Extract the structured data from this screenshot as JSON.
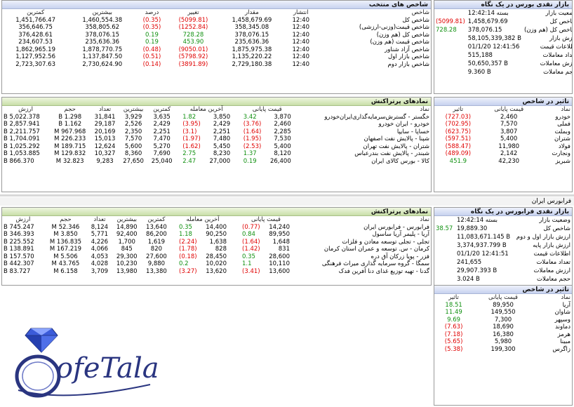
{
  "selected_indices": {
    "title": "شاخص های منتخب",
    "headers": [
      "شاخص",
      "انتشار",
      "مقدار",
      "تغییر",
      "درصد",
      "بیشترین",
      "کمترین"
    ],
    "rows": [
      {
        "name": "شاخص کل",
        "time": "12:40",
        "value": "1,458,679.69",
        "change": "(5099.81)",
        "pct": "(0.35)",
        "max": "1,460,554.38",
        "min": "1,451,766.47",
        "dir": "neg"
      },
      {
        "name": "شاخص قیمت(وزنی-ارزشی)",
        "time": "12:40",
        "value": "358,345.08",
        "change": "(1252.84)",
        "pct": "(0.35)",
        "max": "358,805.62",
        "min": "356,646.75",
        "dir": "neg"
      },
      {
        "name": "شاخص کل (هم وزن)",
        "time": "12:40",
        "value": "378,076.15",
        "change": "728.28",
        "pct": "0.19",
        "max": "378,076.15",
        "min": "376,428.61",
        "dir": "pos"
      },
      {
        "name": "شاخص قیمت (هم وزن)",
        "time": "12:40",
        "value": "235,636.36",
        "change": "453.90",
        "pct": "0.19",
        "max": "235,636.36",
        "min": "234,607.53",
        "dir": "pos"
      },
      {
        "name": "شاخص آزاد شناور",
        "time": "12:40",
        "value": "1,875,975.38",
        "change": "(9050.01)",
        "pct": "(0.48)",
        "max": "1,878,770.75",
        "min": "1,862,965.19",
        "dir": "neg"
      },
      {
        "name": "شاخص بازار اول",
        "time": "12:40",
        "value": "1,135,220.22",
        "change": "(5798.92)",
        "pct": "(0.51)",
        "max": "1,137,847.50",
        "min": "1,127,952.56",
        "dir": "neg"
      },
      {
        "name": "شاخص بازار دوم",
        "time": "12:40",
        "value": "2,729,180.38",
        "change": "(3891.89)",
        "pct": "(0.14)",
        "max": "2,730,624.90",
        "min": "2,723,307.63",
        "dir": "neg"
      }
    ]
  },
  "bourse_glance": {
    "title": "بازار نقدی بورس در یک نگاه",
    "rows": [
      {
        "label": "وضعیت بازار",
        "value": "بسته 12:42:14",
        "change": ""
      },
      {
        "label": "شاخص کل",
        "value": "1,458,679.69",
        "change": "(5099.81)",
        "dir": "neg"
      },
      {
        "label": "شاخص کل (هم وزن)",
        "value": "378,076.15",
        "change": "728.28",
        "dir": "pos"
      },
      {
        "label": "ارزش بازار",
        "value": "58,105,339,382 B",
        "change": ""
      },
      {
        "label": "اطلاعات قیمت",
        "value": "01/1/20 12:41:56",
        "change": ""
      },
      {
        "label": "تعداد معاملات",
        "value": "515,188",
        "change": ""
      },
      {
        "label": "ارزش معاملات",
        "value": "50,650,357 B",
        "change": ""
      },
      {
        "label": "حجم معاملات",
        "value": "9.360 B",
        "change": ""
      }
    ]
  },
  "bourse_top_symbols": {
    "title": "نمادهای پرتراکنش",
    "headers": [
      "نماد",
      "قیمت پایانی",
      "آخرین معامله",
      "کمترین",
      "بیشترین",
      "تعداد",
      "حجم",
      "ارزش"
    ],
    "rows": [
      {
        "name": "خگستر - گسترش‌سرمایه‌گذاری‌ایران‌خودرو",
        "close": "3,870",
        "close_chg": "3.42",
        "close_dir": "pos",
        "last": "3,850",
        "last_chg": "1.82",
        "last_dir": "pos",
        "min": "3,635",
        "max": "3,929",
        "count": "31,841",
        "volume": "1.298 B",
        "value": "5,022.378 B"
      },
      {
        "name": "خودرو - ایران‌ خودرو",
        "close": "2,460",
        "close_chg": "(3.76)",
        "close_dir": "neg",
        "last": "2,429",
        "last_chg": "(3.95)",
        "last_dir": "neg",
        "min": "2,429",
        "max": "2,526",
        "count": "29,187",
        "volume": "1.162 B",
        "value": "2,857.941 B"
      },
      {
        "name": "خساپا - سایپا",
        "close": "2,285",
        "close_chg": "(1.64)",
        "close_dir": "neg",
        "last": "2,251",
        "last_chg": "(3.1)",
        "last_dir": "neg",
        "min": "2,251",
        "max": "2,350",
        "count": "20,169",
        "volume": "967.968 M",
        "value": "2,211.757 B"
      },
      {
        "name": "شپنا - پالایش نفت اصفهان",
        "close": "7,530",
        "close_chg": "(1.95)",
        "close_dir": "neg",
        "last": "7,480",
        "last_chg": "(1.97)",
        "last_dir": "neg",
        "min": "7,470",
        "max": "7,570",
        "count": "15,013",
        "volume": "226.233 M",
        "value": "1,704.091 B"
      },
      {
        "name": "شتران - پالایش نفت تهران",
        "close": "5,400",
        "close_chg": "(2.53)",
        "close_dir": "neg",
        "last": "5,450",
        "last_chg": "(1.62)",
        "last_dir": "neg",
        "min": "5,270",
        "max": "5,600",
        "count": "12,624",
        "volume": "189.715 M",
        "value": "1,025.292 B"
      },
      {
        "name": "شبندر - پالایش نفت بندرعباس",
        "close": "8,120",
        "close_chg": "1.37",
        "close_dir": "pos",
        "last": "8,230",
        "last_chg": "2.75",
        "last_dir": "pos",
        "min": "7,690",
        "max": "8,360",
        "count": "10,327",
        "volume": "129.832 M",
        "value": "1,053.885 B"
      },
      {
        "name": "کالا - بورس کالای ایران",
        "close": "26,400",
        "close_chg": "0.19",
        "close_dir": "pos",
        "last": "27,000",
        "last_chg": "2.47",
        "last_dir": "pos",
        "min": "25,040",
        "max": "27,650",
        "count": "9,283",
        "volume": "32.823 M",
        "value": "866.370 B"
      }
    ]
  },
  "bourse_impact": {
    "title": "تاثیر در شاخص",
    "headers": [
      "نماد",
      "قیمت پایانی",
      "تاثیر"
    ],
    "rows": [
      {
        "name": "خودرو",
        "price": "2,460",
        "impact": "(727.03)",
        "dir": "neg"
      },
      {
        "name": "فملی",
        "price": "7,570",
        "impact": "(702.95)",
        "dir": "neg"
      },
      {
        "name": "وبملت",
        "price": "3,807",
        "impact": "(623.75)",
        "dir": "neg"
      },
      {
        "name": "شتران",
        "price": "5,400",
        "impact": "(597.51)",
        "dir": "neg"
      },
      {
        "name": "فولاد",
        "price": "11,980",
        "impact": "(588.47)",
        "dir": "neg"
      },
      {
        "name": "ونجارت",
        "price": "2,142",
        "impact": "(489.09)",
        "dir": "neg"
      },
      {
        "name": "شبریز",
        "price": "42,230",
        "impact": "451.9",
        "dir": "pos"
      }
    ]
  },
  "farabourse_section_title": "فرابورس ایران",
  "fara_top_symbols": {
    "title": "نمادهای پرتراکنش",
    "headers": [
      "نماد",
      "قیمت پایانی",
      "آخرین معامله",
      "کمترین",
      "بیشترین",
      "تعداد",
      "حجم",
      "ارزش"
    ],
    "rows": [
      {
        "name": "فرابورس - فرابورس ایران",
        "close": "14,240",
        "close_chg": "(0.77)",
        "close_dir": "neg",
        "last": "14,400",
        "last_chg": "0.35",
        "last_dir": "pos",
        "min": "13,640",
        "max": "14,890",
        "count": "8,124",
        "volume": "52.346 M",
        "value": "745.247 B"
      },
      {
        "name": "آریا - پلیمر آریا ساسول",
        "close": "89,950",
        "close_chg": "0.84",
        "close_dir": "pos",
        "last": "90,250",
        "last_chg": "1.18",
        "last_dir": "pos",
        "min": "86,200",
        "max": "92,400",
        "count": "5,771",
        "volume": "3.850 M",
        "value": "346.393 B"
      },
      {
        "name": "تجلی - تجلی توسعه معادن و فلزات",
        "close": "1,648",
        "close_chg": "(1.64)",
        "close_dir": "neg",
        "last": "1,638",
        "last_chg": "(2.24)",
        "last_dir": "neg",
        "min": "1,619",
        "max": "1,700",
        "count": "4,226",
        "volume": "136.835 M",
        "value": "225.552 B"
      },
      {
        "name": "کرمان - س. توسعه و عمران استان کرمان",
        "close": "831",
        "close_chg": "(1.42)",
        "close_dir": "neg",
        "last": "828",
        "last_chg": "(1.78)",
        "last_dir": "neg",
        "min": "820",
        "max": "845",
        "count": "4,066",
        "volume": "167.219 M",
        "value": "138.891 B"
      },
      {
        "name": "فزر - پویا زرکان آق دره",
        "close": "28,600",
        "close_chg": "0.35",
        "close_dir": "pos",
        "last": "28,450",
        "last_chg": "(0.18)",
        "last_dir": "neg",
        "min": "27,600",
        "max": "29,300",
        "count": "4,053",
        "volume": "5.506 M",
        "value": "157.570 B"
      },
      {
        "name": "سمگا - گروه سرمایه گذاری میراث فرهنگی",
        "close": "10,110",
        "close_chg": "1.1",
        "close_dir": "pos",
        "last": "10,020",
        "last_chg": "0.2",
        "last_dir": "pos",
        "min": "9,880",
        "max": "10,230",
        "count": "4,028",
        "volume": "43.765 M",
        "value": "442.307 B"
      },
      {
        "name": "گدنا - تهیه توزیع غذای دنا آفرین فدک",
        "close": "13,600",
        "close_chg": "(3.41)",
        "close_dir": "neg",
        "last": "13,620",
        "last_chg": "(3.27)",
        "last_dir": "neg",
        "min": "13,380",
        "max": "13,980",
        "count": "3,709",
        "volume": "6.158 M",
        "value": "83.727 B"
      }
    ]
  },
  "fara_glance": {
    "title": "بازار نقدی فرابورس در یک نگاه",
    "rows": [
      {
        "label": "وضعیت بازار",
        "value": "بسته 12:42:14",
        "change": ""
      },
      {
        "label": "شاخص کل",
        "value": "19,889.30",
        "change": "38.57",
        "dir": "pos"
      },
      {
        "label": "ارزش بازار اول و دوم",
        "value": "11,083,671.145 B",
        "change": ""
      },
      {
        "label": "ارزش بازار پایه",
        "value": "3,374,937.799 B",
        "change": ""
      },
      {
        "label": "اطلاعات قیمت",
        "value": "01/1/20 12:41:51",
        "change": ""
      },
      {
        "label": "تعداد معاملات",
        "value": "241,655",
        "change": ""
      },
      {
        "label": "ارزش معاملات",
        "value": "29,907.393 B",
        "change": ""
      },
      {
        "label": "حجم معاملات",
        "value": "3.024 B",
        "change": ""
      }
    ]
  },
  "fara_impact": {
    "title": "تاثیر در شاخص",
    "headers": [
      "نماد",
      "قیمت پایانی",
      "تاثیر"
    ],
    "rows": [
      {
        "name": "آریا",
        "price": "89,950",
        "impact": "18.51",
        "dir": "pos"
      },
      {
        "name": "شاوان",
        "price": "149,550",
        "impact": "11.49",
        "dir": "pos"
      },
      {
        "name": "وسپهر",
        "price": "7,300",
        "impact": "9.69",
        "dir": "pos"
      },
      {
        "name": "دماوند",
        "price": "18,690",
        "impact": "(7.63)",
        "dir": "neg"
      },
      {
        "name": "هرمز",
        "price": "16,380",
        "impact": "(7.18)",
        "dir": "neg"
      },
      {
        "name": "مبینا",
        "price": "5,980",
        "impact": "(5.65)",
        "dir": "neg"
      },
      {
        "name": "زاگرس",
        "price": "199,300",
        "impact": "(5.38)",
        "dir": "neg"
      }
    ]
  },
  "logo": {
    "text": "ofeTala",
    "color": "#2a3580"
  }
}
